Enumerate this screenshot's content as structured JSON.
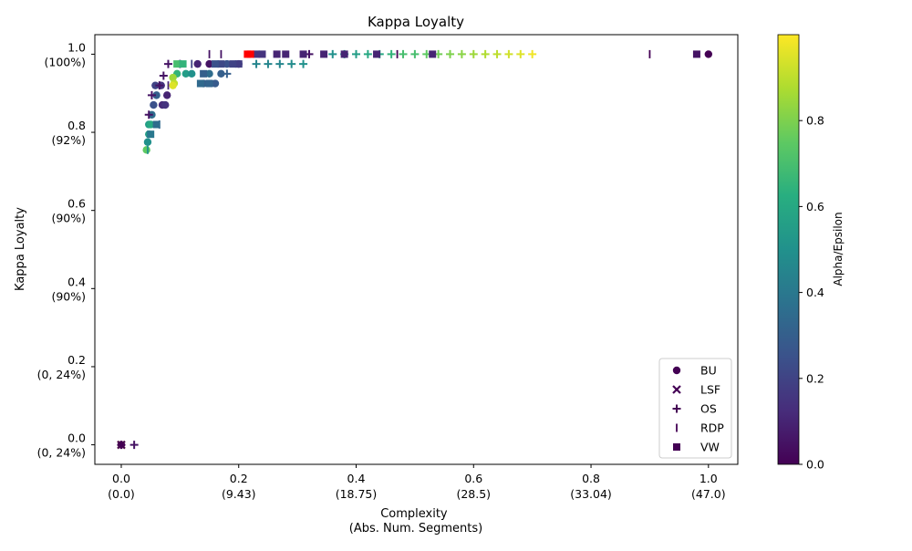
{
  "chart_data": {
    "type": "scatter",
    "title": "Kappa Loyalty",
    "xlabel": [
      "Complexity",
      "(Abs. Num. Segments)"
    ],
    "ylabel": "Kappa Loyalty",
    "xlim": [
      -0.045,
      1.05
    ],
    "ylim": [
      -0.05,
      1.05
    ],
    "x_ticks": [
      {
        "value": 0.0,
        "label": "0.0",
        "sub": "(0.0)"
      },
      {
        "value": 0.2,
        "label": "0.2",
        "sub": "(9.43)"
      },
      {
        "value": 0.4,
        "label": "0.4",
        "sub": "(18.75)"
      },
      {
        "value": 0.6,
        "label": "0.6",
        "sub": "(28.5)"
      },
      {
        "value": 0.8,
        "label": "0.8",
        "sub": "(33.04)"
      },
      {
        "value": 1.0,
        "label": "1.0",
        "sub": "(47.0)"
      }
    ],
    "y_ticks": [
      {
        "value": 0.0,
        "label": "0.0",
        "sub": "(0, 24%)"
      },
      {
        "value": 0.2,
        "label": "0.2",
        "sub": "(0, 24%)"
      },
      {
        "value": 0.4,
        "label": "0.4",
        "sub": "(90%)"
      },
      {
        "value": 0.6,
        "label": "0.6",
        "sub": "(90%)"
      },
      {
        "value": 0.8,
        "label": "0.8",
        "sub": "(92%)"
      },
      {
        "value": 1.0,
        "label": "1.0",
        "sub": "(100%)"
      }
    ],
    "colorbar": {
      "label": "Alpha/Epsilon",
      "range": [
        0,
        1.0
      ],
      "ticks": [
        "0.0",
        "0.2",
        "0.4",
        "0.6",
        "0.8"
      ],
      "tick_values": [
        0.0,
        0.2,
        0.4,
        0.6,
        0.8
      ],
      "colormap": "viridis"
    },
    "legend_position": "bottom-right",
    "series": [
      {
        "name": "BU",
        "marker": "circle",
        "points": [
          [
            1.0,
            1.0,
            0.0
          ],
          [
            0.15,
            0.975,
            0.05
          ],
          [
            0.13,
            0.975,
            0.1
          ],
          [
            0.058,
            0.92,
            0.2
          ],
          [
            0.068,
            0.92,
            0.15
          ],
          [
            0.06,
            0.895,
            0.3
          ],
          [
            0.078,
            0.895,
            0.1
          ],
          [
            0.055,
            0.87,
            0.25
          ],
          [
            0.07,
            0.87,
            0.12
          ],
          [
            0.075,
            0.87,
            0.15
          ],
          [
            0.052,
            0.845,
            0.35
          ],
          [
            0.047,
            0.82,
            0.55
          ],
          [
            0.05,
            0.82,
            0.6
          ],
          [
            0.047,
            0.795,
            0.55
          ],
          [
            0.045,
            0.775,
            0.5
          ],
          [
            0.043,
            0.755,
            0.75
          ],
          [
            0.1,
            0.975,
            0.7
          ],
          [
            0.11,
            0.95,
            0.55
          ],
          [
            0.095,
            0.95,
            0.65
          ],
          [
            0.12,
            0.95,
            0.5
          ],
          [
            0.088,
            0.94,
            0.85
          ],
          [
            0.09,
            0.925,
            0.9
          ],
          [
            0.088,
            0.92,
            0.95
          ],
          [
            0.14,
            0.925,
            0.3
          ],
          [
            0.16,
            0.925,
            0.28
          ],
          [
            0.15,
            0.95,
            0.35
          ],
          [
            0.17,
            0.95,
            0.3
          ],
          [
            0.2,
            0.975,
            0.2
          ],
          [
            0.18,
            0.975,
            0.25
          ],
          [
            0.0,
            0.0,
            0.0
          ]
        ]
      },
      {
        "name": "LSF",
        "marker": "x",
        "points": [
          [
            0.0,
            0.0,
            0.95
          ],
          [
            0.0,
            0.0,
            0.0
          ]
        ]
      },
      {
        "name": "OS",
        "marker": "plus",
        "points": [
          [
            0.08,
            0.975,
            0.05
          ],
          [
            0.072,
            0.945,
            0.05
          ],
          [
            0.065,
            0.92,
            0.05
          ],
          [
            0.052,
            0.895,
            0.05
          ],
          [
            0.047,
            0.845,
            0.05
          ],
          [
            0.18,
            0.95,
            0.3
          ],
          [
            0.022,
            0.0,
            0.05
          ],
          [
            0.0,
            0.0,
            0.0
          ],
          [
            0.32,
            1.0,
            0.05
          ],
          [
            0.23,
            0.975,
            0.45
          ],
          [
            0.25,
            0.975,
            0.45
          ],
          [
            0.27,
            0.975,
            0.45
          ],
          [
            0.29,
            0.975,
            0.48
          ],
          [
            0.31,
            0.975,
            0.5
          ],
          [
            0.36,
            1.0,
            0.5
          ],
          [
            0.38,
            1.0,
            0.55
          ],
          [
            0.4,
            1.0,
            0.55
          ],
          [
            0.42,
            1.0,
            0.6
          ],
          [
            0.44,
            1.0,
            0.6
          ],
          [
            0.46,
            1.0,
            0.65
          ],
          [
            0.48,
            1.0,
            0.7
          ],
          [
            0.5,
            1.0,
            0.7
          ],
          [
            0.52,
            1.0,
            0.75
          ],
          [
            0.54,
            1.0,
            0.78
          ],
          [
            0.56,
            1.0,
            0.8
          ],
          [
            0.58,
            1.0,
            0.82
          ],
          [
            0.6,
            1.0,
            0.85
          ],
          [
            0.62,
            1.0,
            0.88
          ],
          [
            0.64,
            1.0,
            0.9
          ],
          [
            0.66,
            1.0,
            0.93
          ],
          [
            0.68,
            1.0,
            0.95
          ],
          [
            0.7,
            1.0,
            0.98
          ]
        ]
      },
      {
        "name": "RDP",
        "marker": "vline",
        "points": [
          [
            0.9,
            1.0,
            0.0
          ],
          [
            0.47,
            1.0,
            0.0
          ],
          [
            0.15,
            1.0,
            0.05
          ],
          [
            0.17,
            1.0,
            0.05
          ],
          [
            0.045,
            0.755,
            0.5
          ],
          [
            0.065,
            0.82,
            0.3
          ],
          [
            0.08,
            0.92,
            0.1
          ],
          [
            0.1,
            0.975,
            0.15
          ],
          [
            0.12,
            0.975,
            0.2
          ]
        ]
      },
      {
        "name": "VW",
        "marker": "square",
        "points": [
          [
            0.98,
            1.0,
            0.05
          ],
          [
            0.53,
            1.0,
            0.1
          ],
          [
            0.435,
            1.0,
            0.1
          ],
          [
            0.38,
            1.0,
            0.1
          ],
          [
            0.345,
            1.0,
            0.1
          ],
          [
            0.31,
            1.0,
            0.1
          ],
          [
            0.28,
            1.0,
            0.1
          ],
          [
            0.265,
            1.0,
            0.1
          ],
          [
            0.24,
            1.0,
            0.15
          ],
          [
            0.23,
            1.0,
            0.15
          ],
          [
            0.22,
            1.0,
            0.99
          ],
          [
            0.215,
            1.0,
            0.99
          ],
          [
            0.2,
            0.975,
            0.18
          ],
          [
            0.19,
            0.975,
            0.2
          ],
          [
            0.17,
            0.975,
            0.22
          ],
          [
            0.16,
            0.975,
            0.25
          ],
          [
            0.14,
            0.95,
            0.3
          ],
          [
            0.15,
            0.925,
            0.32
          ],
          [
            0.135,
            0.925,
            0.34
          ],
          [
            0.06,
            0.82,
            0.35
          ],
          [
            0.05,
            0.795,
            0.4
          ],
          [
            0.095,
            0.975,
            0.7
          ],
          [
            0.105,
            0.975,
            0.65
          ]
        ]
      }
    ]
  }
}
